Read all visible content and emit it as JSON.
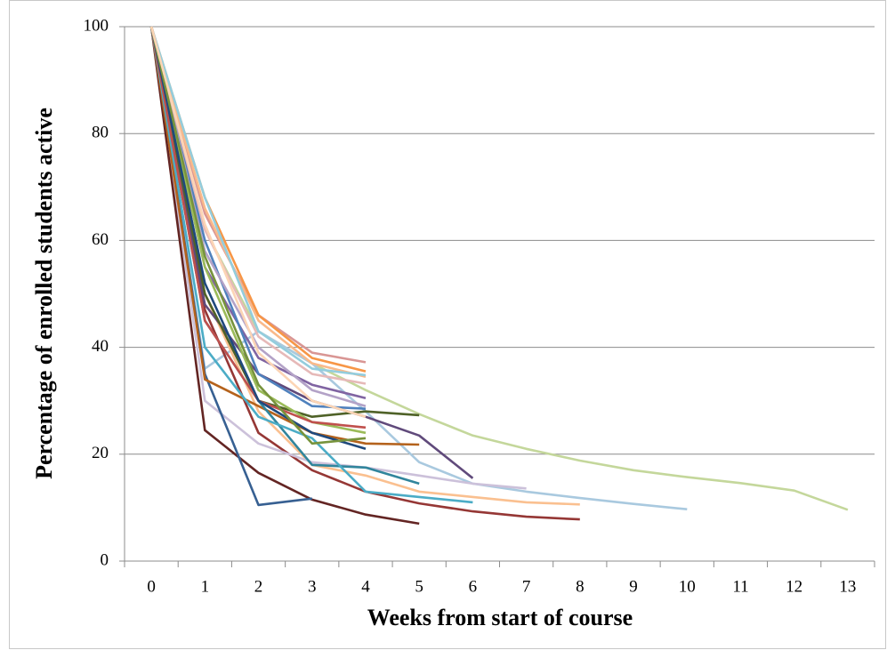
{
  "chart_data": {
    "type": "line",
    "xlabel": "Weeks from start of course",
    "ylabel": "Percentage of enrolled students active",
    "categories": [
      "0",
      "1",
      "2",
      "3",
      "4",
      "5",
      "6",
      "7",
      "8",
      "9",
      "10",
      "11",
      "12",
      "13"
    ],
    "ylim": [
      0,
      100
    ],
    "yticks": [
      0,
      20,
      40,
      60,
      80,
      100
    ],
    "grid": true,
    "series": [
      {
        "color": "#c4d79b",
        "values": [
          100,
          62,
          43,
          37,
          32,
          27.5,
          23.5,
          21,
          18.8,
          17,
          15.7,
          14.6,
          13.2,
          9.6
        ]
      },
      {
        "color": "#a9c9df",
        "values": [
          100,
          36,
          43,
          37,
          28,
          18.5,
          14.5,
          13,
          11.8,
          10.7,
          9.7,
          null,
          null,
          null
        ]
      },
      {
        "color": "#953735",
        "values": [
          100,
          47,
          24,
          17,
          13,
          10.8,
          9.3,
          8.3,
          7.8,
          null,
          null,
          null,
          null,
          null
        ]
      },
      {
        "color": "#fac090",
        "values": [
          100,
          50,
          28,
          18,
          16,
          13,
          12,
          11,
          10.6,
          null,
          null,
          null,
          null,
          null
        ]
      },
      {
        "color": "#ccc1da",
        "values": [
          100,
          30,
          22,
          18.5,
          17.5,
          16,
          14.5,
          13.6,
          null,
          null,
          null,
          null,
          null,
          null
        ]
      },
      {
        "color": "#604a7b",
        "values": [
          100,
          48,
          35,
          30,
          27,
          23.5,
          15.5,
          null,
          null,
          null,
          null,
          null,
          null,
          null
        ]
      },
      {
        "color": "#632523",
        "values": [
          100,
          24.5,
          16.5,
          11.5,
          8.7,
          7,
          null,
          null,
          null,
          null,
          null,
          null,
          null,
          null
        ]
      },
      {
        "color": "#376092",
        "values": [
          100,
          35,
          10.5,
          11.7,
          null,
          null,
          null,
          null,
          null,
          null,
          null,
          null,
          null,
          null
        ]
      },
      {
        "color": "#4f6228",
        "values": [
          100,
          50,
          30,
          27,
          28,
          27.3,
          null,
          null,
          null,
          null,
          null,
          null,
          null,
          null
        ]
      },
      {
        "color": "#b4621c",
        "values": [
          100,
          34,
          29,
          24,
          22,
          21.8,
          null,
          null,
          null,
          null,
          null,
          null,
          null,
          null
        ]
      },
      {
        "color": "#31859c",
        "values": [
          100,
          45,
          30,
          18,
          17.5,
          14.5,
          null,
          null,
          null,
          null,
          null,
          null,
          null,
          null
        ]
      },
      {
        "color": "#4bacc6",
        "values": [
          100,
          40,
          27,
          23,
          13,
          12,
          11,
          null,
          null,
          null,
          null,
          null,
          null,
          null
        ]
      },
      {
        "color": "#d99694",
        "values": [
          100,
          65,
          46,
          39,
          37.2,
          null,
          null,
          null,
          null,
          null,
          null,
          null,
          null,
          null
        ]
      },
      {
        "color": "#f79646",
        "values": [
          100,
          68,
          46,
          38,
          35.5,
          null,
          null,
          null,
          null,
          null,
          null,
          null,
          null,
          null
        ]
      },
      {
        "color": "#f9b98a",
        "values": [
          100,
          66,
          45,
          37,
          34.5,
          null,
          null,
          null,
          null,
          null,
          null,
          null,
          null,
          null
        ]
      },
      {
        "color": "#93cddd",
        "values": [
          100,
          68,
          43,
          36,
          34.8,
          null,
          null,
          null,
          null,
          null,
          null,
          null,
          null,
          null
        ]
      },
      {
        "color": "#8064a2",
        "values": [
          100,
          55,
          38,
          33,
          30.5,
          null,
          null,
          null,
          null,
          null,
          null,
          null,
          null,
          null
        ]
      },
      {
        "color": "#4f81bd",
        "values": [
          100,
          60,
          35,
          29,
          28.5,
          null,
          null,
          null,
          null,
          null,
          null,
          null,
          null,
          null
        ]
      },
      {
        "color": "#9bbb59",
        "values": [
          100,
          55,
          32,
          26,
          24,
          null,
          null,
          null,
          null,
          null,
          null,
          null,
          null,
          null
        ]
      },
      {
        "color": "#c0504d",
        "values": [
          100,
          45,
          30,
          26,
          25,
          null,
          null,
          null,
          null,
          null,
          null,
          null,
          null,
          null
        ]
      },
      {
        "color": "#1f497d",
        "values": [
          100,
          52,
          30,
          24,
          21,
          null,
          null,
          null,
          null,
          null,
          null,
          null,
          null,
          null
        ]
      },
      {
        "color": "#b3a2c7",
        "values": [
          100,
          58,
          40,
          32,
          29,
          null,
          null,
          null,
          null,
          null,
          null,
          null,
          null,
          null
        ]
      },
      {
        "color": "#e6b9b8",
        "values": [
          100,
          62,
          42,
          35,
          33.2,
          null,
          null,
          null,
          null,
          null,
          null,
          null,
          null,
          null
        ]
      },
      {
        "color": "#77933c",
        "values": [
          100,
          57,
          33,
          22,
          23,
          null,
          null,
          null,
          null,
          null,
          null,
          null,
          null,
          null
        ]
      },
      {
        "color": "#fcd5b5",
        "values": [
          100,
          63,
          39,
          30,
          27,
          null,
          null,
          null,
          null,
          null,
          null,
          null,
          null,
          null
        ]
      }
    ]
  }
}
